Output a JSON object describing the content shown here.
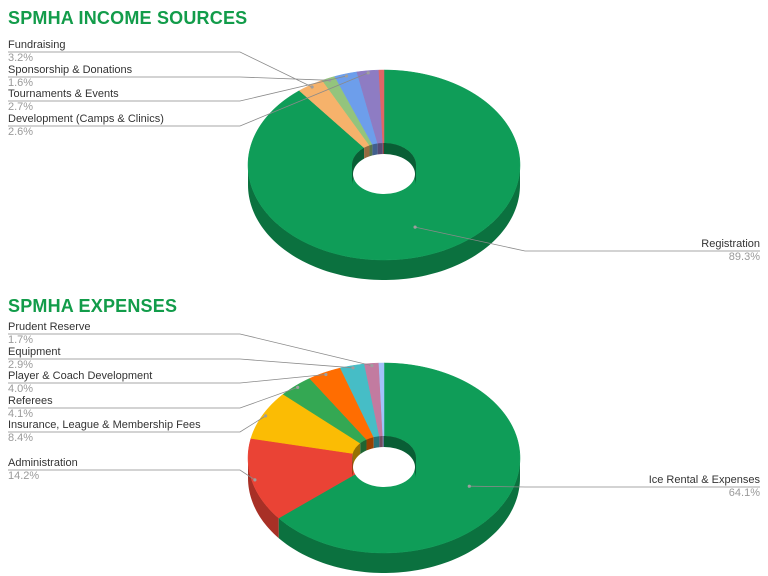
{
  "chart_data": [
    {
      "type": "pie",
      "style": "3d-donut",
      "title": "SPMHA INCOME SOURCES",
      "slices": [
        {
          "label": "Registration",
          "value": 89.3,
          "display": "89.3%",
          "color": "#0f9d58"
        },
        {
          "label": "Fundraising",
          "value": 3.2,
          "display": "3.2%",
          "color": "#f6b26b"
        },
        {
          "label": "Sponsorship & Donations",
          "value": 1.6,
          "display": "1.6%",
          "color": "#93c47d"
        },
        {
          "label": "Tournaments & Events",
          "value": 2.7,
          "display": "2.7%",
          "color": "#6d9eeb"
        },
        {
          "label": "Development (Camps & Clinics)",
          "value": 2.6,
          "display": "2.6%",
          "color": "#8e7cc3"
        },
        {
          "label": "",
          "value": 0.6,
          "display": "",
          "color": "#e06666"
        }
      ]
    },
    {
      "type": "pie",
      "style": "3d-donut",
      "title": "SPMHA EXPENSES",
      "slices": [
        {
          "label": "Ice Rental & Expenses",
          "value": 64.1,
          "display": "64.1%",
          "color": "#0f9d58"
        },
        {
          "label": "Administration",
          "value": 14.2,
          "display": "14.2%",
          "color": "#ea4335"
        },
        {
          "label": "Insurance, League & Membership Fees",
          "value": 8.4,
          "display": "8.4%",
          "color": "#fbbc04"
        },
        {
          "label": "Referees",
          "value": 4.1,
          "display": "4.1%",
          "color": "#34a853"
        },
        {
          "label": "Player & Coach Development",
          "value": 4.0,
          "display": "4.0%",
          "color": "#ff6d01"
        },
        {
          "label": "Equipment",
          "value": 2.9,
          "display": "2.9%",
          "color": "#46bdc6"
        },
        {
          "label": "Prudent Reserve",
          "value": 1.7,
          "display": "1.7%",
          "color": "#c27ba0"
        },
        {
          "label": "",
          "value": 0.6,
          "display": "",
          "color": "#a1c2fa"
        }
      ]
    }
  ]
}
